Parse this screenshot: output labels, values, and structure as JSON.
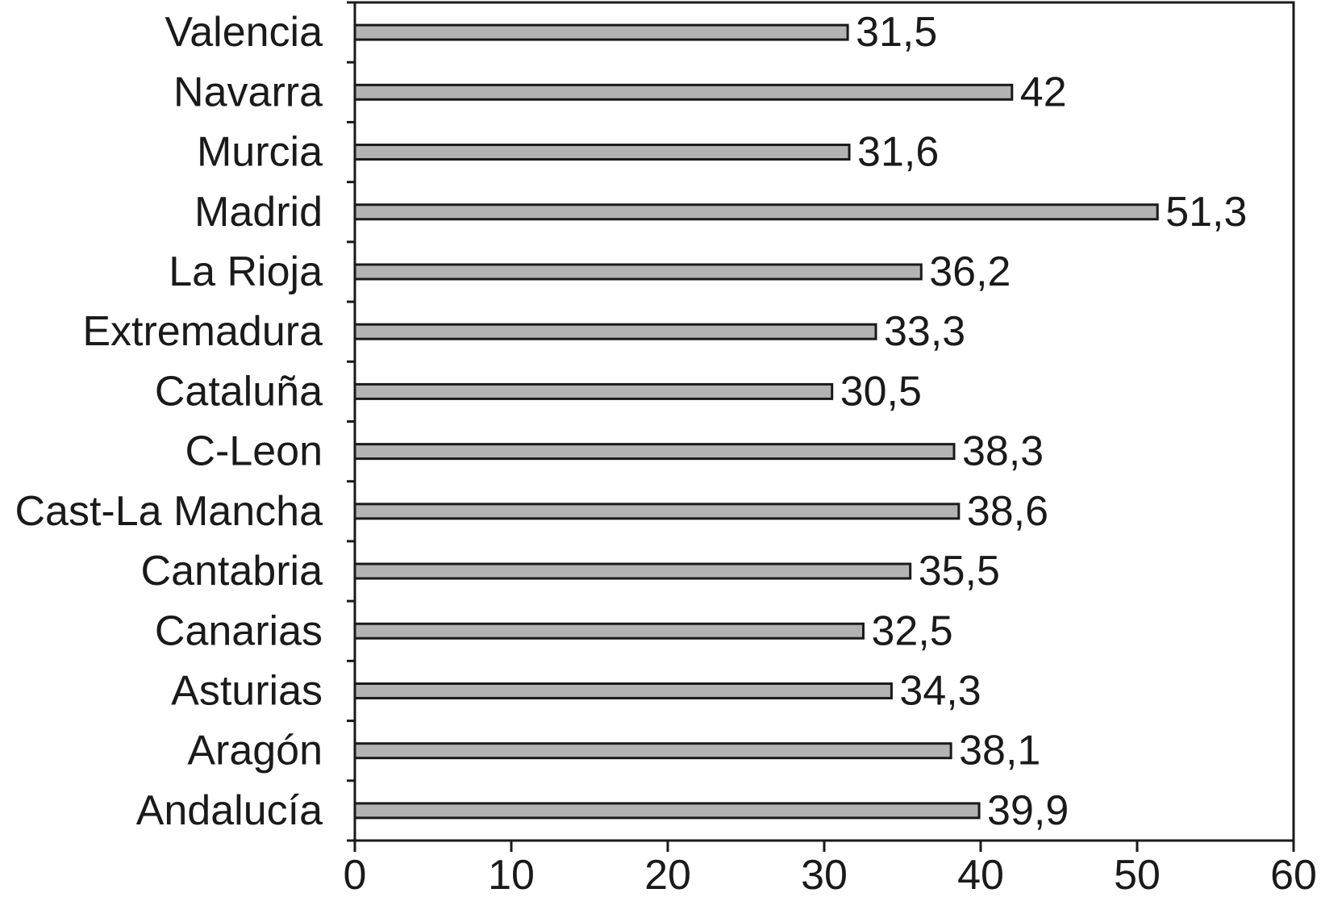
{
  "chart_data": {
    "type": "bar",
    "orientation": "horizontal",
    "categories": [
      "Valencia",
      "Navarra",
      "Murcia",
      "Madrid",
      "La Rioja",
      "Extremadura",
      "Cataluña",
      "C-Leon",
      "Cast-La Mancha",
      "Cantabria",
      "Canarias",
      "Asturias",
      "Aragón",
      "Andalucía"
    ],
    "values": [
      31.5,
      42,
      31.6,
      51.3,
      36.2,
      33.3,
      30.5,
      38.3,
      38.6,
      35.5,
      32.5,
      34.3,
      38.1,
      39.9
    ],
    "value_labels": [
      "31,5",
      "42",
      "31,6",
      "51,3",
      "36,2",
      "33,3",
      "30,5",
      "38,3",
      "38,6",
      "35,5",
      "32,5",
      "34,3",
      "38,1",
      "39,9"
    ],
    "xlim": [
      0,
      60
    ],
    "x_ticks": [
      "0",
      "10",
      "20",
      "30",
      "40",
      "50",
      "60"
    ],
    "title": "",
    "xlabel": "",
    "ylabel": "",
    "grid": false,
    "legend": "none",
    "colors": {
      "bar_fill": "#b3b3b3",
      "bar_stroke": "#1a1a1a",
      "axis": "#1a1a1a"
    }
  }
}
